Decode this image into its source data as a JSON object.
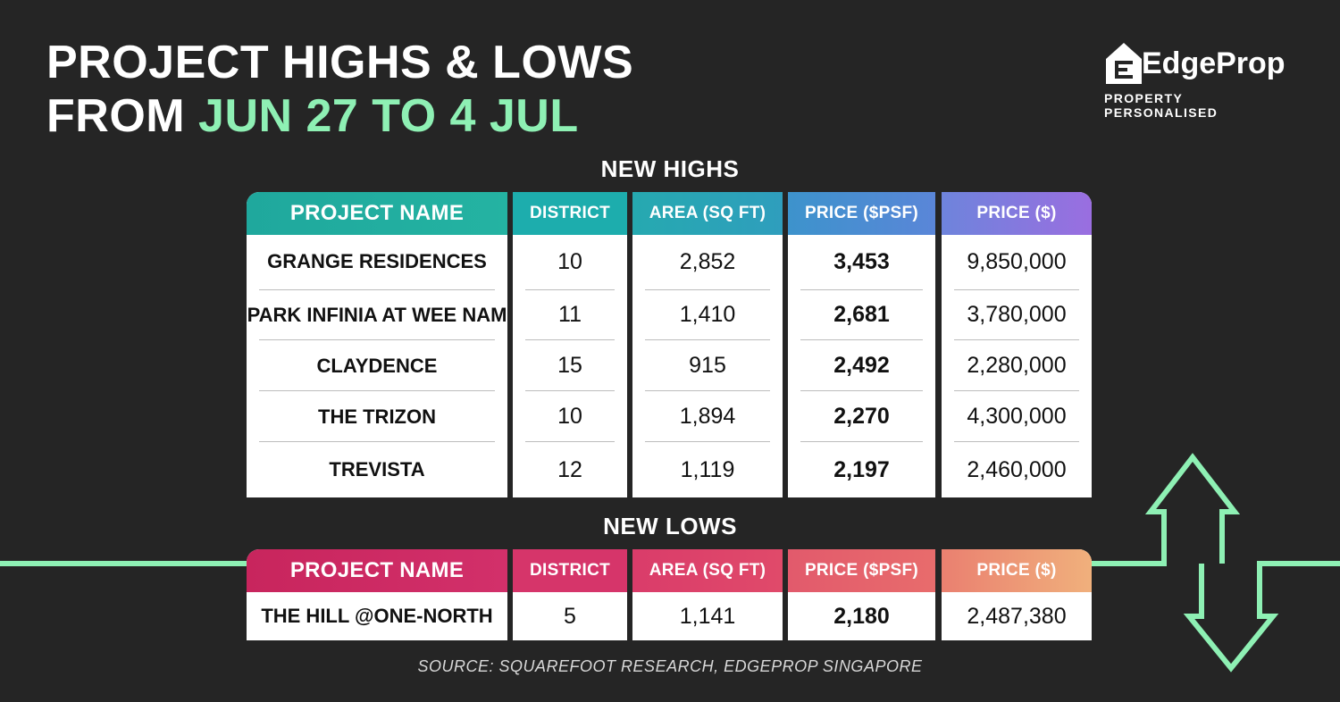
{
  "title": {
    "line1": "PROJECT HIGHS & LOWS",
    "line2_prefix": "FROM ",
    "line2_accent": "JUN 27 TO 4 JUL"
  },
  "logo": {
    "name": "EdgeProp",
    "tagline": "PROPERTY PERSONALISED"
  },
  "colors": {
    "accent": "#8ef0b4",
    "background": "#252525"
  },
  "new_highs": {
    "heading": "NEW HIGHS",
    "columns": [
      "PROJECT NAME",
      "DISTRICT",
      "AREA (SQ FT)",
      "PRICE ($PSF)",
      "PRICE ($)"
    ],
    "rows": [
      {
        "name": "GRANGE RESIDENCES",
        "district": "10",
        "area": "2,852",
        "psf": "3,453",
        "price": "9,850,000"
      },
      {
        "name": "PARK INFINIA AT WEE NAM",
        "district": "11",
        "area": "1,410",
        "psf": "2,681",
        "price": "3,780,000"
      },
      {
        "name": "CLAYDENCE",
        "district": "15",
        "area": "915",
        "psf": "2,492",
        "price": "2,280,000"
      },
      {
        "name": "THE TRIZON",
        "district": "10",
        "area": "1,894",
        "psf": "2,270",
        "price": "4,300,000"
      },
      {
        "name": "TREVISTA",
        "district": "12",
        "area": "1,119",
        "psf": "2,197",
        "price": "2,460,000"
      }
    ]
  },
  "new_lows": {
    "heading": "NEW LOWS",
    "columns": [
      "PROJECT NAME",
      "DISTRICT",
      "AREA (SQ FT)",
      "PRICE ($PSF)",
      "PRICE ($)"
    ],
    "rows": [
      {
        "name": "THE HILL @ONE-NORTH",
        "district": "5",
        "area": "1,141",
        "psf": "2,180",
        "price": "2,487,380"
      }
    ]
  },
  "source": "SOURCE: SQUAREFOOT RESEARCH, EDGEPROP SINGAPORE"
}
